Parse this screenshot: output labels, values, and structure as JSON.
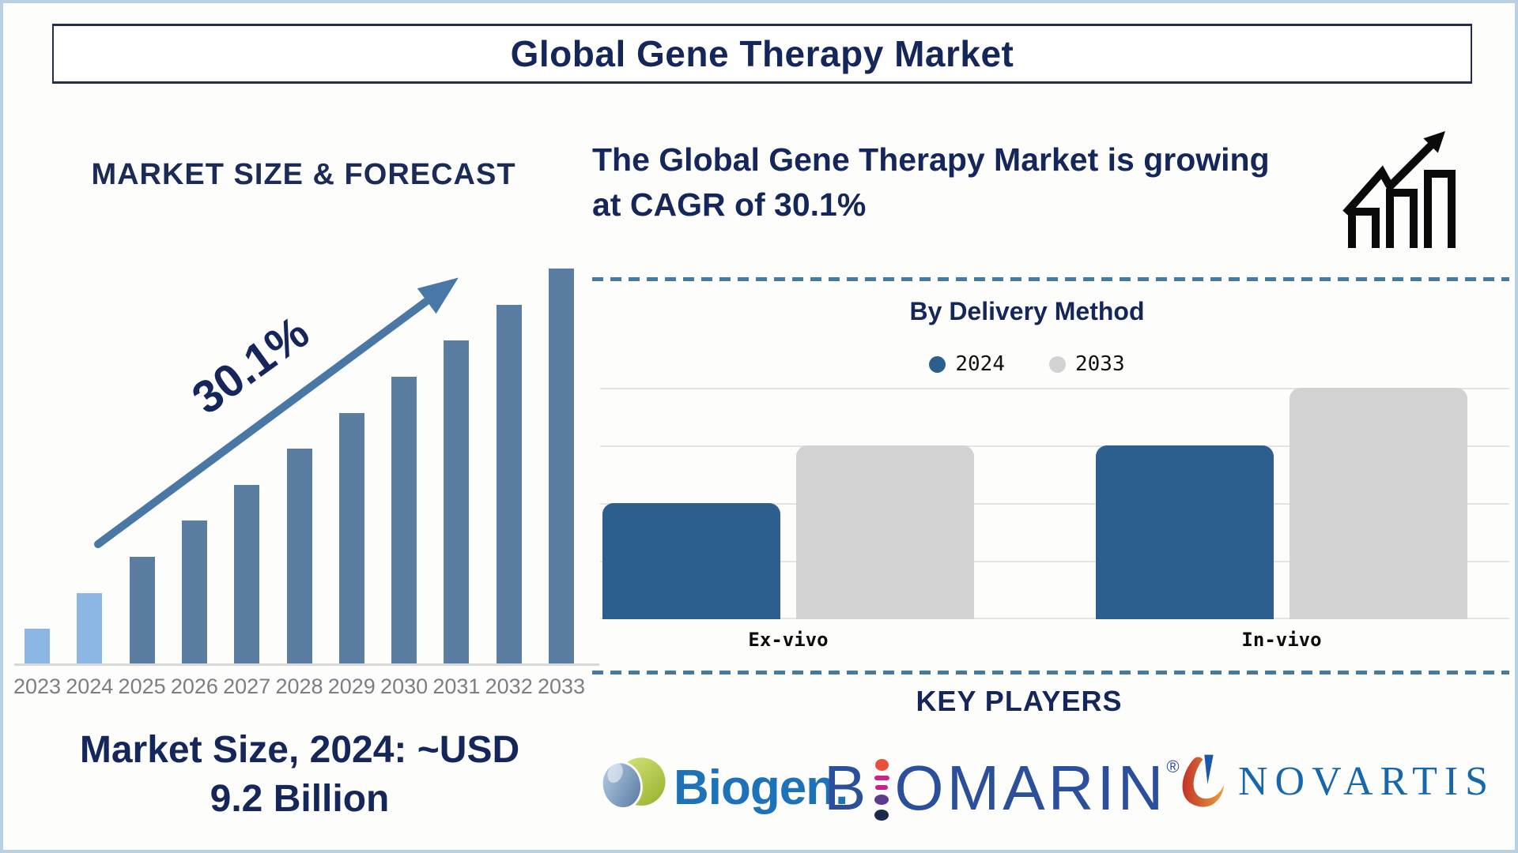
{
  "page": {
    "title": "Global Gene Therapy Market",
    "accent_navy": "#15265B",
    "border_blue": "#B7D0E2"
  },
  "left_chart": {
    "title": "MARKET SIZE & FORECAST",
    "growth_annotation": "30.1%",
    "caption_line1": "Market Size, 2024: ~USD",
    "caption_line2": "9.2 Billion"
  },
  "cagr_banner": {
    "line1": "The Global Gene Therapy Market is growing",
    "line2": "at CAGR of 30.1%"
  },
  "delivery_chart": {
    "title": "By Delivery Method",
    "legend": [
      {
        "label": "2024",
        "color": "#2D5F8E"
      },
      {
        "label": "2033",
        "color": "#D2D2D2"
      }
    ],
    "categories": [
      "Ex-vivo",
      "In-vivo"
    ]
  },
  "key_players": {
    "title": "KEY PLAYERS",
    "biogen_text": "Biogen.",
    "biomarin_b": "B",
    "biomarin_rest": "OMARIN",
    "biomarin_reg": "®",
    "novartis_text": "NOVARTIS"
  },
  "chart_data": [
    {
      "type": "bar",
      "title": "MARKET SIZE & FORECAST",
      "categories": [
        "2023",
        "2024",
        "2025",
        "2026",
        "2027",
        "2028",
        "2029",
        "2030",
        "2031",
        "2032",
        "2033"
      ],
      "values_relative": [
        1,
        2,
        3,
        4,
        5,
        6,
        7,
        8,
        9,
        10,
        11
      ],
      "annotation": "30.1%",
      "note": "Y axis unlabeled; bars rise in equal linear steps from 2023 to 2033. Market Size, 2024: ~USD 9.2 Billion; CAGR 30.1%.",
      "bar_color": "#5B7DA2",
      "highlight_color": "#8CB7E4",
      "highlight_count": 2,
      "xlabel": "",
      "ylabel": "",
      "grid": false
    },
    {
      "type": "bar",
      "title": "By Delivery Method",
      "categories": [
        "Ex-vivo",
        "In-vivo"
      ],
      "series": [
        {
          "name": "2024",
          "values": [
            2,
            3
          ],
          "color": "#2D5F8E"
        },
        {
          "name": "2033",
          "values": [
            3,
            4
          ],
          "color": "#D2D2D2"
        }
      ],
      "unit": "gridline units (axis unlabeled)",
      "ylim": [
        0,
        4
      ],
      "grid": true,
      "legend_position": "top"
    }
  ]
}
